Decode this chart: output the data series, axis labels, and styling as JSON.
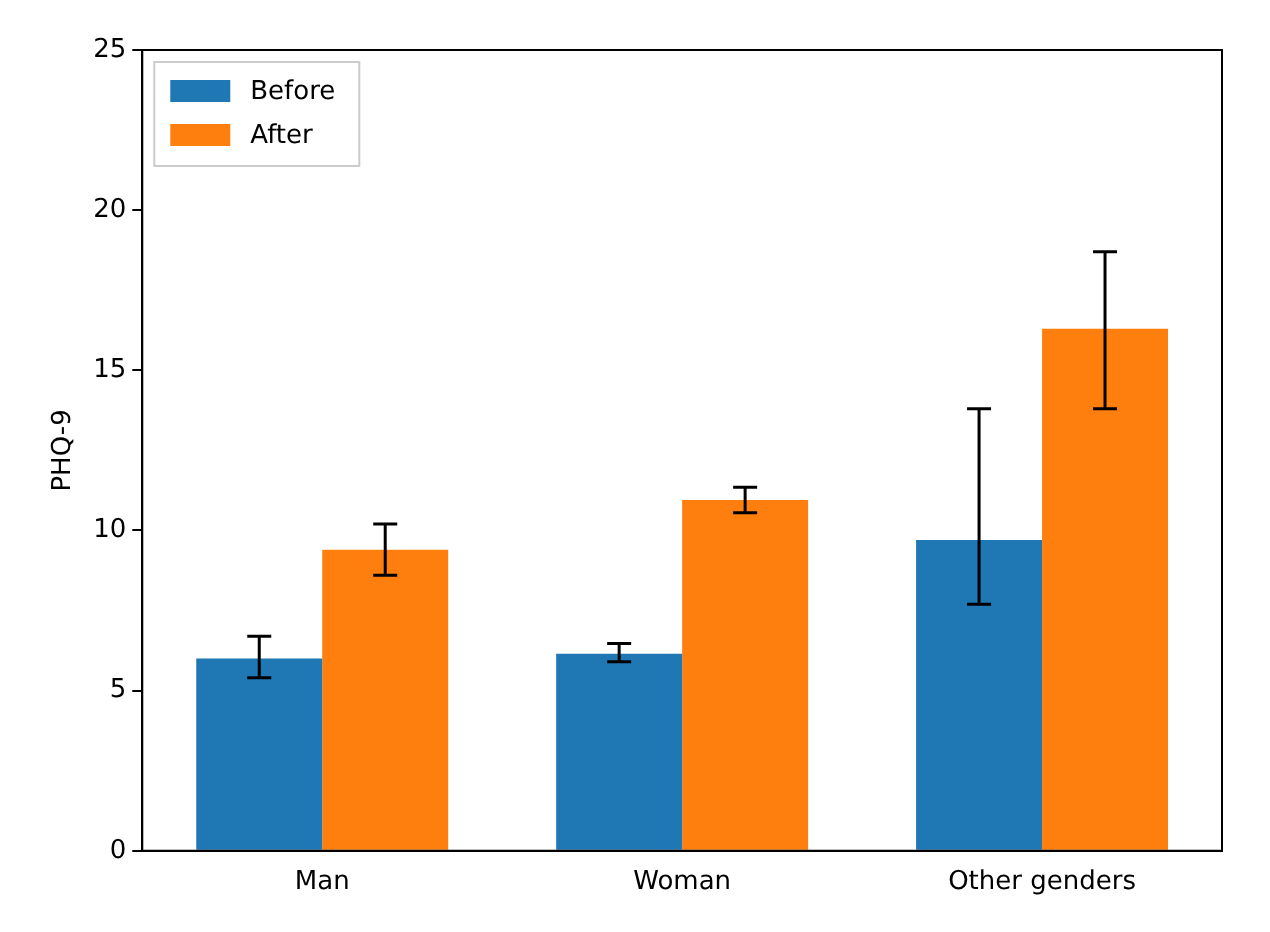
{
  "chart_data": {
    "type": "bar",
    "ylabel": "PHQ-9",
    "categories": [
      "Man",
      "Woman",
      "Other genders"
    ],
    "series": [
      {
        "name": "Before",
        "color": "#1f77b4",
        "values": [
          6.0,
          6.15,
          9.7
        ],
        "errors": [
          [
            5.4,
            6.7
          ],
          [
            5.9,
            6.47
          ],
          [
            7.7,
            13.8
          ]
        ]
      },
      {
        "name": "After",
        "color": "#ff7f0e",
        "values": [
          9.4,
          10.95,
          16.3
        ],
        "errors": [
          [
            8.6,
            10.2
          ],
          [
            10.55,
            11.35
          ],
          [
            13.8,
            18.7
          ]
        ]
      }
    ],
    "ylim": [
      0,
      25
    ],
    "yticks": [
      0,
      5,
      10,
      15,
      20,
      25
    ],
    "grid": false,
    "legend": "top left"
  }
}
